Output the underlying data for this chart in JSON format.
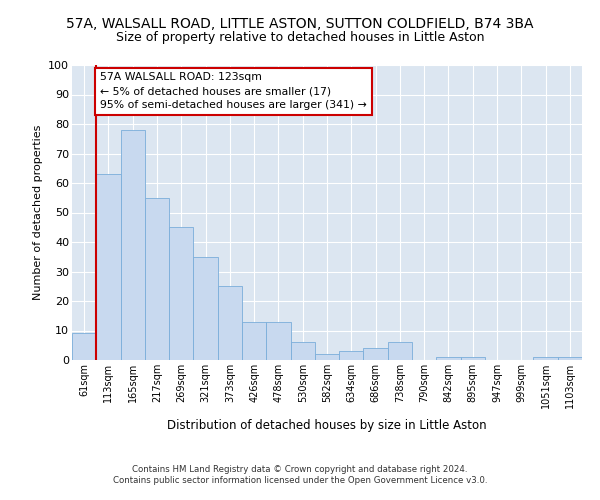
{
  "title": "57A, WALSALL ROAD, LITTLE ASTON, SUTTON COLDFIELD, B74 3BA",
  "subtitle": "Size of property relative to detached houses in Little Aston",
  "xlabel": "Distribution of detached houses by size in Little Aston",
  "ylabel": "Number of detached properties",
  "bin_labels": [
    "61sqm",
    "113sqm",
    "165sqm",
    "217sqm",
    "269sqm",
    "321sqm",
    "373sqm",
    "426sqm",
    "478sqm",
    "530sqm",
    "582sqm",
    "634sqm",
    "686sqm",
    "738sqm",
    "790sqm",
    "842sqm",
    "895sqm",
    "947sqm",
    "999sqm",
    "1051sqm",
    "1103sqm"
  ],
  "bar_values": [
    9,
    63,
    78,
    55,
    45,
    35,
    25,
    13,
    13,
    6,
    2,
    3,
    4,
    6,
    0,
    1,
    1,
    0,
    0,
    1,
    1
  ],
  "bar_color": "#c8d9ef",
  "bar_edgecolor": "#7aadda",
  "red_line_bar_index": 1,
  "annotation_line1": "57A WALSALL ROAD: 123sqm",
  "annotation_line2": "← 5% of detached houses are smaller (17)",
  "annotation_line3": "95% of semi-detached houses are larger (341) →",
  "annotation_box_facecolor": "#ffffff",
  "annotation_box_edgecolor": "#cc0000",
  "red_line_color": "#cc0000",
  "ylim": [
    0,
    100
  ],
  "yticks": [
    0,
    10,
    20,
    30,
    40,
    50,
    60,
    70,
    80,
    90,
    100
  ],
  "plot_bg_color": "#dce6f1",
  "grid_color": "#ffffff",
  "title_fontsize": 10,
  "subtitle_fontsize": 9,
  "footer_line1": "Contains HM Land Registry data © Crown copyright and database right 2024.",
  "footer_line2": "Contains public sector information licensed under the Open Government Licence v3.0."
}
